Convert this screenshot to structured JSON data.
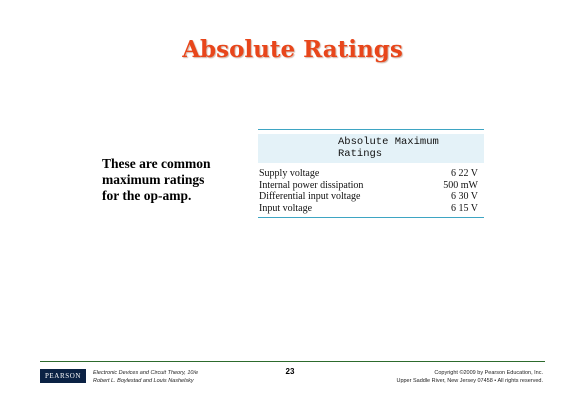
{
  "slide": {
    "title": "Absolute Ratings",
    "left_text": [
      "These are common",
      "maximum ratings",
      "for the op-amp."
    ]
  },
  "table": {
    "header": [
      "Absolute Maximum",
      "Ratings"
    ],
    "rows": [
      {
        "label": "Supply voltage",
        "value": "6 22 V"
      },
      {
        "label": "Internal power dissipation",
        "value": "500 mW"
      },
      {
        "label": "Differential input voltage",
        "value": "6 30 V"
      },
      {
        "label": "Input voltage",
        "value": "6 15 V"
      }
    ]
  },
  "footer": {
    "logo": "PEARSON",
    "book_title": "Electronic Devices and Circuit Theory, 10/e",
    "authors": "Robert L. Boylestad and Louis Nashelsky",
    "page_number": "23",
    "copyright": "Copyright ©2009 by Pearson Education, Inc.",
    "address": "Upper Saddle River, New Jersey 07458 • All rights reserved."
  }
}
